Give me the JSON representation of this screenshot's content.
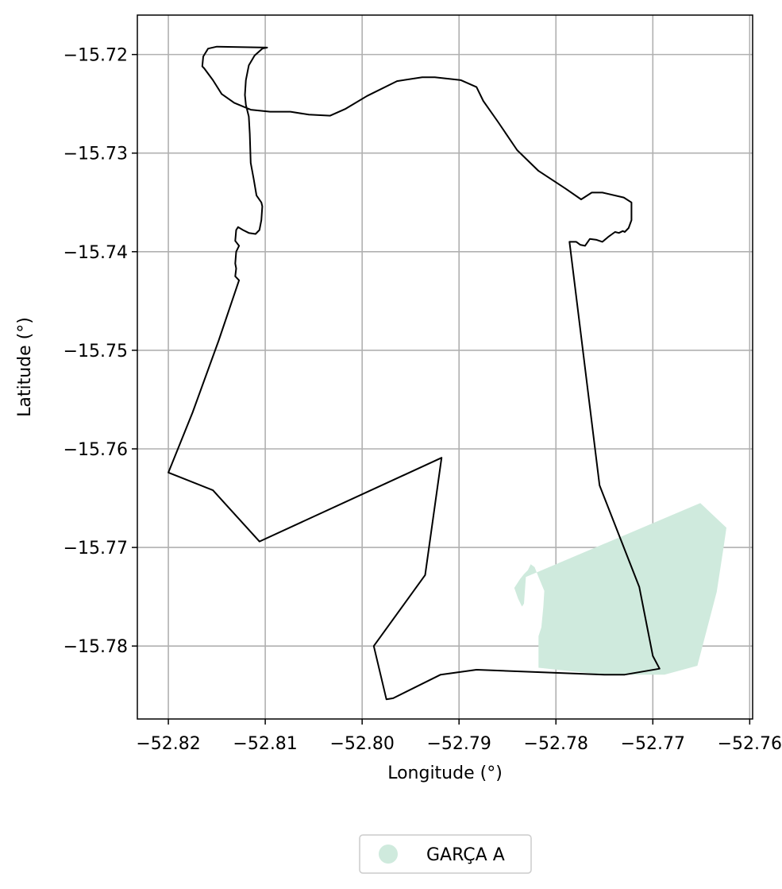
{
  "chart_data": {
    "type": "map",
    "xlabel": "Longitude (°)",
    "ylabel": "Latitude (°)",
    "xlim": [
      -52.8232,
      -52.7597
    ],
    "ylim": [
      -15.7874,
      -15.716
    ],
    "xticks": [
      -52.82,
      -52.81,
      -52.8,
      -52.79,
      -52.78,
      -52.77,
      -52.76
    ],
    "xtick_labels": [
      "−52.82",
      "−52.81",
      "−52.80",
      "−52.79",
      "−52.78",
      "−52.77",
      "−52.76"
    ],
    "yticks": [
      -15.72,
      -15.73,
      -15.74,
      -15.75,
      -15.76,
      -15.77,
      -15.78
    ],
    "ytick_labels": [
      "−15.72",
      "−15.73",
      "−15.74",
      "−15.75",
      "−15.76",
      "−15.77",
      "−15.78"
    ],
    "grid": true,
    "legend_placement": "bottom-center, below axes",
    "legend": [
      {
        "label": "GARÇA A",
        "color": "#cfeadd"
      }
    ],
    "layers": [
      {
        "name": "boundary",
        "kind": "outline",
        "stroke": "#000000",
        "fill": "none",
        "coordinates": [
          [
            -52.8098,
            -15.7193
          ],
          [
            -52.8103,
            -15.7194
          ],
          [
            -52.8111,
            -15.7201
          ],
          [
            -52.8117,
            -15.7211
          ],
          [
            -52.812,
            -15.7226
          ],
          [
            -52.8121,
            -15.7241
          ],
          [
            -52.812,
            -15.7251
          ],
          [
            -52.8117,
            -15.7263
          ],
          [
            -52.8116,
            -15.728
          ],
          [
            -52.8115,
            -15.731
          ],
          [
            -52.8112,
            -15.7326
          ],
          [
            -52.8109,
            -15.7343
          ],
          [
            -52.8104,
            -15.735
          ],
          [
            -52.8103,
            -15.7354
          ],
          [
            -52.8104,
            -15.7368
          ],
          [
            -52.8106,
            -15.7378
          ],
          [
            -52.811,
            -15.7382
          ],
          [
            -52.8117,
            -15.7381
          ],
          [
            -52.8123,
            -15.7378
          ],
          [
            -52.8128,
            -15.7375
          ],
          [
            -52.813,
            -15.7378
          ],
          [
            -52.8131,
            -15.7389
          ],
          [
            -52.8127,
            -15.7394
          ],
          [
            -52.813,
            -15.74
          ],
          [
            -52.8131,
            -15.7412
          ],
          [
            -52.813,
            -15.7417
          ],
          [
            -52.8131,
            -15.7425
          ],
          [
            -52.8127,
            -15.7429
          ],
          [
            -52.8148,
            -15.749
          ],
          [
            -52.8175,
            -15.7563
          ],
          [
            -52.82,
            -15.7624
          ],
          [
            -52.8154,
            -15.7642
          ],
          [
            -52.8106,
            -15.7694
          ],
          [
            -52.7918,
            -15.7609
          ],
          [
            -52.7935,
            -15.7728
          ],
          [
            -52.7988,
            -15.78
          ],
          [
            -52.7975,
            -15.7854
          ],
          [
            -52.7968,
            -15.7853
          ],
          [
            -52.7919,
            -15.7829
          ],
          [
            -52.7882,
            -15.7824
          ],
          [
            -52.775,
            -15.7829
          ],
          [
            -52.7729,
            -15.7829
          ],
          [
            -52.7693,
            -15.7823
          ],
          [
            -52.77,
            -15.781
          ],
          [
            -52.7714,
            -15.774
          ],
          [
            -52.7755,
            -15.7637
          ],
          [
            -52.7786,
            -15.739
          ],
          [
            -52.7779,
            -15.739
          ],
          [
            -52.7775,
            -15.7393
          ],
          [
            -52.777,
            -15.7394
          ],
          [
            -52.7765,
            -15.7387
          ],
          [
            -52.7758,
            -15.7388
          ],
          [
            -52.7752,
            -15.739
          ],
          [
            -52.7746,
            -15.7385
          ],
          [
            -52.7739,
            -15.738
          ],
          [
            -52.7735,
            -15.7381
          ],
          [
            -52.7731,
            -15.7379
          ],
          [
            -52.7729,
            -15.738
          ],
          [
            -52.7725,
            -15.7376
          ],
          [
            -52.7722,
            -15.7368
          ],
          [
            -52.7722,
            -15.735
          ],
          [
            -52.773,
            -15.7345
          ],
          [
            -52.7752,
            -15.734
          ],
          [
            -52.7763,
            -15.734
          ],
          [
            -52.7774,
            -15.7347
          ],
          [
            -52.779,
            -15.7336
          ],
          [
            -52.7818,
            -15.7318
          ],
          [
            -52.784,
            -15.7297
          ],
          [
            -52.786,
            -15.7268
          ],
          [
            -52.7875,
            -15.7247
          ],
          [
            -52.7882,
            -15.7233
          ],
          [
            -52.7898,
            -15.7226
          ],
          [
            -52.7925,
            -15.7223
          ],
          [
            -52.7938,
            -15.7223
          ],
          [
            -52.7964,
            -15.7227
          ],
          [
            -52.7995,
            -15.7242
          ],
          [
            -52.8017,
            -15.7255
          ],
          [
            -52.8033,
            -15.7262
          ],
          [
            -52.8055,
            -15.7261
          ],
          [
            -52.8074,
            -15.7258
          ],
          [
            -52.8095,
            -15.7258
          ],
          [
            -52.8115,
            -15.7256
          ],
          [
            -52.8132,
            -15.7249
          ],
          [
            -52.8145,
            -15.724
          ],
          [
            -52.8154,
            -15.7226
          ],
          [
            -52.8163,
            -15.7214
          ],
          [
            -52.8165,
            -15.7212
          ],
          [
            -52.8164,
            -15.7202
          ],
          [
            -52.8159,
            -15.7194
          ],
          [
            -52.815,
            -15.7192
          ]
        ]
      },
      {
        "name": "GARÇA A",
        "kind": "filled-area",
        "fill": "#cfeadd",
        "coordinates": [
          [
            -52.7651,
            -15.7655
          ],
          [
            -52.7624,
            -15.768
          ],
          [
            -52.7627,
            -15.77
          ],
          [
            -52.7634,
            -15.7745
          ],
          [
            -52.7654,
            -15.782
          ],
          [
            -52.7688,
            -15.7829
          ],
          [
            -52.7729,
            -15.7829
          ],
          [
            -52.775,
            -15.7829
          ],
          [
            -52.7818,
            -15.7822
          ],
          [
            -52.7818,
            -15.779
          ],
          [
            -52.7815,
            -15.7781
          ],
          [
            -52.7813,
            -15.776
          ],
          [
            -52.7812,
            -15.7744
          ],
          [
            -52.7818,
            -15.773
          ],
          [
            -52.7822,
            -15.772
          ],
          [
            -52.7826,
            -15.7717
          ],
          [
            -52.7829,
            -15.7723
          ],
          [
            -52.7833,
            -15.7727
          ],
          [
            -52.7837,
            -15.7732
          ],
          [
            -52.7843,
            -15.7741
          ],
          [
            -52.7839,
            -15.7752
          ],
          [
            -52.7835,
            -15.776
          ],
          [
            -52.7833,
            -15.7757
          ],
          [
            -52.7831,
            -15.773
          ]
        ]
      }
    ]
  }
}
